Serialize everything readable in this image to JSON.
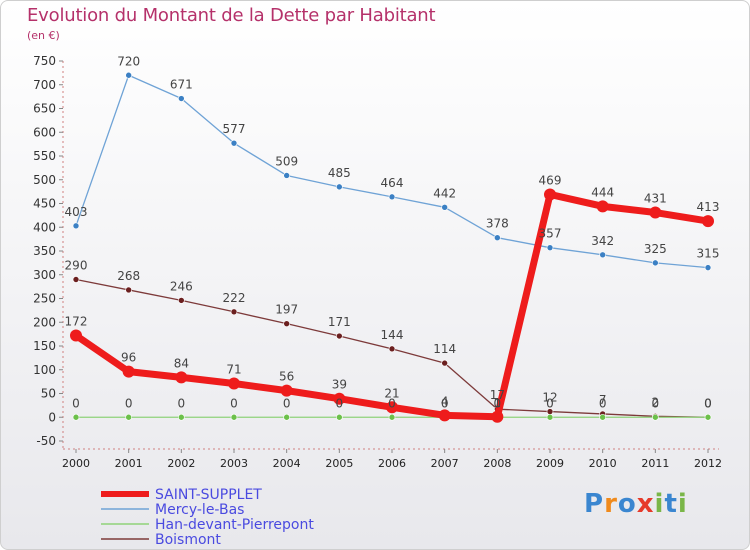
{
  "title": "Evolution du Montant de la Dette par Habitant",
  "subtitle": "(en €)",
  "logo": {
    "letters": [
      "P",
      "r",
      "o",
      "x",
      "i",
      "t",
      "i"
    ],
    "colors": [
      "#3a86d0",
      "#f08a1c",
      "#3a86d0",
      "#e63a2a",
      "#7ab648",
      "#3a86d0",
      "#7ab648"
    ]
  },
  "chart_data": {
    "type": "line",
    "x": [
      "2000",
      "2001",
      "2002",
      "2003",
      "2004",
      "2005",
      "2006",
      "2007",
      "2008",
      "2009",
      "2010",
      "2011",
      "2012"
    ],
    "ylim": [
      -50,
      750
    ],
    "yticks": [
      -50,
      0,
      50,
      100,
      150,
      200,
      250,
      300,
      350,
      400,
      450,
      500,
      550,
      600,
      650,
      700,
      750
    ],
    "grid": false,
    "legend_position": "bottom-left",
    "series": [
      {
        "name": "Mercy-le-Bas",
        "color": "#6fa3d6",
        "marker": "#3b80c4",
        "width": 1.3,
        "labels_shown": true,
        "values": [
          403,
          720,
          671,
          577,
          509,
          485,
          464,
          442,
          378,
          357,
          342,
          325,
          315
        ]
      },
      {
        "name": "Boismont",
        "color": "#7d3a3a",
        "marker": "#6b1f1f",
        "width": 1.3,
        "labels_shown": true,
        "values": [
          290,
          268,
          246,
          222,
          197,
          171,
          144,
          114,
          17,
          12,
          7,
          2,
          0
        ]
      },
      {
        "name": "Han-devant-Pierrepont",
        "color": "#8fd27a",
        "marker": "#6cc04a",
        "width": 1.3,
        "labels_shown": true,
        "values": [
          0,
          0,
          0,
          0,
          0,
          0,
          0,
          0,
          0,
          0,
          0,
          0,
          0
        ]
      },
      {
        "name": "SAINT-SUPPLET",
        "color": "#ee1c1c",
        "marker": "#ee1c1c",
        "width": 7,
        "labels_shown": true,
        "values": [
          172,
          96,
          84,
          71,
          56,
          39,
          21,
          4,
          1,
          469,
          444,
          431,
          413
        ]
      }
    ],
    "legend": [
      "SAINT-SUPPLET",
      "Mercy-le-Bas",
      "Han-devant-Pierrepont",
      "Boismont"
    ]
  }
}
